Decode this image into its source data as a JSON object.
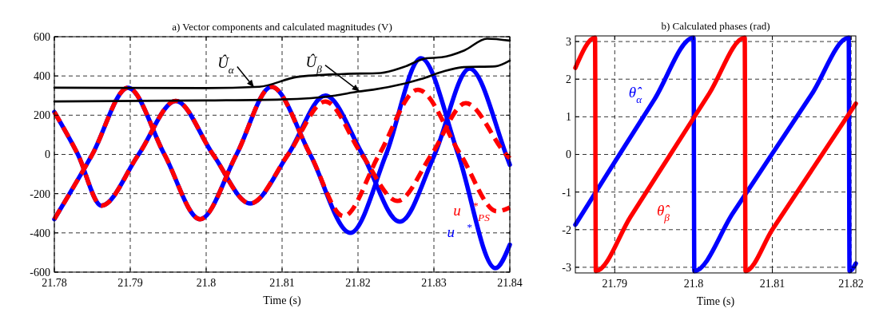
{
  "chart_data": [
    {
      "type": "line",
      "title": "a) Vector components and calculated magnitudes (V)",
      "xlabel": "Time (s)",
      "xlim": [
        21.78,
        21.84
      ],
      "xticks": [
        21.78,
        21.79,
        21.8,
        21.81,
        21.82,
        21.83,
        21.84
      ],
      "ylim": [
        -600,
        600
      ],
      "yticks": [
        -600,
        -400,
        -200,
        0,
        200,
        400,
        600
      ],
      "grid": true,
      "line_style": "solid",
      "series": [
        {
          "color": "#0000ff",
          "x": [
            21.78,
            21.7831,
            21.7862,
            21.7911,
            21.796,
            21.8009,
            21.8058,
            21.8108,
            21.8157,
            21.8206,
            21.8255,
            21.8301,
            21.8347,
            21.8395,
            21.84
          ],
          "values": [
            216,
            0,
            -261,
            0,
            273,
            0,
            -250,
            0,
            300,
            0,
            -343,
            0,
            437,
            0,
            -53
          ]
        },
        {
          "name": "u⃗$^{*}$",
          "color": "#0000ff",
          "x": [
            21.78,
            21.785,
            21.7897,
            21.7945,
            21.7992,
            21.804,
            21.8086,
            21.8137,
            21.819,
            21.8237,
            21.8283,
            21.8332,
            21.8381,
            21.84
          ],
          "values": [
            -330,
            0,
            340,
            0,
            -330,
            0,
            345,
            0,
            -400,
            0,
            490,
            0,
            -580,
            -460
          ]
        },
        {
          "color": "#ff0000",
          "line_style": "dashed",
          "x": [
            21.78,
            21.7831,
            21.7862,
            21.7911,
            21.796,
            21.8009,
            21.8058,
            21.8108,
            21.8157,
            21.8205,
            21.8252,
            21.8297,
            21.8342,
            21.8395,
            21.84
          ],
          "values": [
            216,
            0,
            -261,
            0,
            273,
            0,
            -250,
            0,
            270,
            0,
            -237,
            0,
            261,
            0,
            -20
          ]
        },
        {
          "name": "u⃗$^{*}$$_{PS}$",
          "color": "#ff0000",
          "line_style": "dashed",
          "x": [
            21.78,
            21.785,
            21.7897,
            21.7945,
            21.7992,
            21.804,
            21.8086,
            21.8137,
            21.8181,
            21.8228,
            21.8279,
            21.8335,
            21.8383,
            21.84
          ],
          "values": [
            -330,
            0,
            340,
            0,
            -330,
            0,
            345,
            0,
            -315,
            0,
            330,
            0,
            -290,
            -270
          ]
        },
        {
          "color": "#000000",
          "x": [
            21.78,
            21.8,
            21.807,
            21.812,
            21.818,
            21.823,
            21.826,
            21.829,
            21.831,
            21.834,
            21.837,
            21.84
          ],
          "values": [
            340,
            338,
            345,
            395,
            410,
            415,
            445,
            490,
            495,
            530,
            590,
            580
          ]
        },
        {
          "color": "#000000",
          "x": [
            21.78,
            21.8,
            21.81,
            21.817,
            21.82,
            21.822,
            21.826,
            21.8283,
            21.831,
            21.8339,
            21.8381,
            21.84
          ],
          "values": [
            270,
            275,
            280,
            300,
            320,
            330,
            360,
            384,
            420,
            445,
            449,
            478
          ]
        }
      ],
      "annotations": [
        {
          "text": "Û$_{α}$",
          "x": 21.8063,
          "y": 342
        },
        {
          "text": "Û$_{β}$",
          "x": 21.8202,
          "y": 321
        }
      ]
    },
    {
      "type": "line",
      "title": "b) Calculated phases (rad)",
      "xlabel": "Time (s)",
      "xlim": [
        21.785,
        21.8206
      ],
      "xticks": [
        21.79,
        21.8,
        21.81,
        21.82
      ],
      "ylim": [
        -3.15,
        3.15
      ],
      "yticks": [
        -3,
        -2,
        -1,
        0,
        1,
        2,
        3
      ],
      "grid": true,
      "line_style": "solid",
      "series": [
        {
          "name": "θ̂$_{α}$",
          "color": "#0000ff",
          "x": [
            21.785,
            21.79,
            21.795,
            21.8,
            21.8001,
            21.805,
            21.81,
            21.815,
            21.8197,
            21.8198,
            21.8206
          ],
          "values": [
            -1.87,
            -0.2,
            1.45,
            3.1,
            -3.1,
            -1.56,
            0.02,
            1.6,
            3.1,
            -3.1,
            -2.9
          ]
        },
        {
          "name": "θ̂$_{β}$",
          "color": "#ff0000",
          "x": [
            21.785,
            21.7875,
            21.7876,
            21.792,
            21.797,
            21.802,
            21.8065,
            21.8066,
            21.81,
            21.815,
            21.8206
          ],
          "values": [
            2.3,
            3.1,
            -3.1,
            -1.66,
            -0.02,
            1.62,
            3.1,
            -3.1,
            -2.0,
            -0.42,
            1.35
          ]
        }
      ]
    }
  ]
}
